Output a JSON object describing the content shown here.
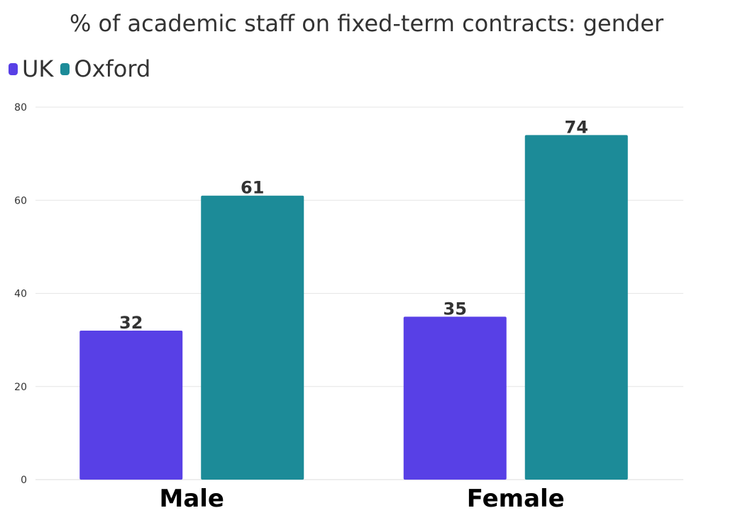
{
  "chart_data": {
    "type": "bar",
    "title": "% of academic staff on fixed-term contracts: gender",
    "categories": [
      "Male",
      "Female"
    ],
    "series": [
      {
        "name": "UK",
        "values": [
          32,
          35
        ],
        "color": "#5840e6"
      },
      {
        "name": "Oxford",
        "values": [
          61,
          74
        ],
        "color": "#1c8b98"
      }
    ],
    "ylim": [
      0,
      80
    ],
    "yticks": [
      0,
      20,
      40,
      60,
      80
    ],
    "xlabel": "",
    "ylabel": "",
    "grid": true,
    "legend": "top-left",
    "data_labels": true
  }
}
